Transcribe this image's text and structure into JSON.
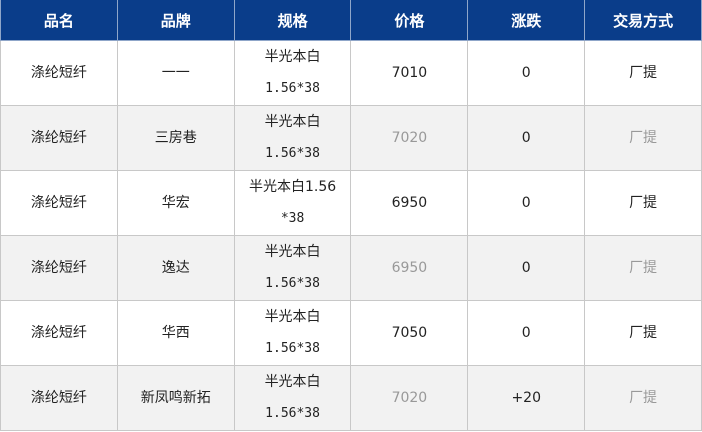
{
  "headers": [
    "品名",
    "品牌",
    "规格",
    "价格",
    "涨跌",
    "交易方式"
  ],
  "rows": [
    {
      "name": "涤纶短纤",
      "brand": "一一",
      "spec1": "半光本白",
      "spec2": "1.56*38",
      "price": "7010",
      "change": "0",
      "mode": "厂提"
    },
    {
      "name": "涤纶短纤",
      "brand": "三房巷",
      "spec1": "半光本白",
      "spec2": "1.56*38",
      "price": "7020",
      "change": "0",
      "mode": "厂提"
    },
    {
      "name": "涤纶短纤",
      "brand": "华宏",
      "spec1": "半光本白1.56",
      "spec2": "*38",
      "price": "6950",
      "change": "0",
      "mode": "厂提"
    },
    {
      "name": "涤纶短纤",
      "brand": "逸达",
      "spec1": "半光本白",
      "spec2": "1.56*38",
      "price": "6950",
      "change": "0",
      "mode": "厂提"
    },
    {
      "name": "涤纶短纤",
      "brand": "华西",
      "spec1": "半光本白",
      "spec2": "1.56*38",
      "price": "7050",
      "change": "0",
      "mode": "厂提"
    },
    {
      "name": "涤纶短纤",
      "brand": "新凤鸣新拓",
      "spec1": "半光本白",
      "spec2": "1.56*38",
      "price": "7020",
      "change": "+20",
      "mode": "厂提"
    }
  ],
  "colors": {
    "header_bg": "#0a3d8a",
    "alt_row_bg": "#f2f2f2",
    "muted_text": "#999999"
  }
}
